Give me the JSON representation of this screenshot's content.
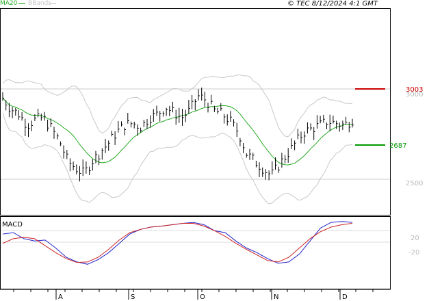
{
  "header": {
    "ma_label": "MA20",
    "bb_label": "BBands",
    "copyright": "© TEC 8/12/2024 4:1 GMT"
  },
  "colors": {
    "ma": "#22aa22",
    "bbands": "#c8c8c8",
    "price": "#000000",
    "resistance": "#cc0000",
    "support": "#009900",
    "macd": "#2222cc",
    "signal": "#cc2222",
    "grid": "#cccccc"
  },
  "chart_data": [
    {
      "type": "ohlc",
      "x_labels": [
        "A",
        "S",
        "O",
        "N",
        "D"
      ],
      "y_ticks": [
        "3000",
        "2500"
      ],
      "price_levels": {
        "resistance": "3003",
        "support": "2687"
      },
      "close_path": [
        2950,
        2890,
        2860,
        2800,
        2830,
        2840,
        2780,
        2710,
        2600,
        2560,
        2530,
        2600,
        2650,
        2700,
        2760,
        2800,
        2810,
        2790,
        2840,
        2860,
        2900,
        2870,
        2840,
        2880,
        2960,
        2940,
        2880,
        2860,
        2820,
        2760,
        2640,
        2600,
        2560,
        2520,
        2580,
        2640,
        2700,
        2760,
        2780,
        2800,
        2820,
        2810,
        2800,
        2830
      ]
    },
    {
      "type": "line",
      "title": "MACD",
      "y_ticks": [
        "20",
        "-20"
      ],
      "series": [
        {
          "values": [
            5,
            8,
            -5,
            -10,
            -8,
            -25,
            -45,
            -55,
            -60,
            -50,
            -35,
            -15,
            5,
            15,
            20,
            22,
            25,
            28,
            30,
            25,
            12,
            8,
            -10,
            -25,
            -35,
            -48,
            -58,
            -55,
            -38,
            -10,
            18,
            30,
            32,
            30
          ]
        },
        {
          "values": [
            -15,
            -5,
            -2,
            -5,
            -20,
            -35,
            -48,
            -56,
            -55,
            -45,
            -28,
            -8,
            8,
            15,
            20,
            22,
            25,
            28,
            28,
            22,
            12,
            0,
            -15,
            -28,
            -40,
            -52,
            -55,
            -45,
            -25,
            -5,
            10,
            20,
            25,
            28
          ]
        }
      ]
    }
  ]
}
